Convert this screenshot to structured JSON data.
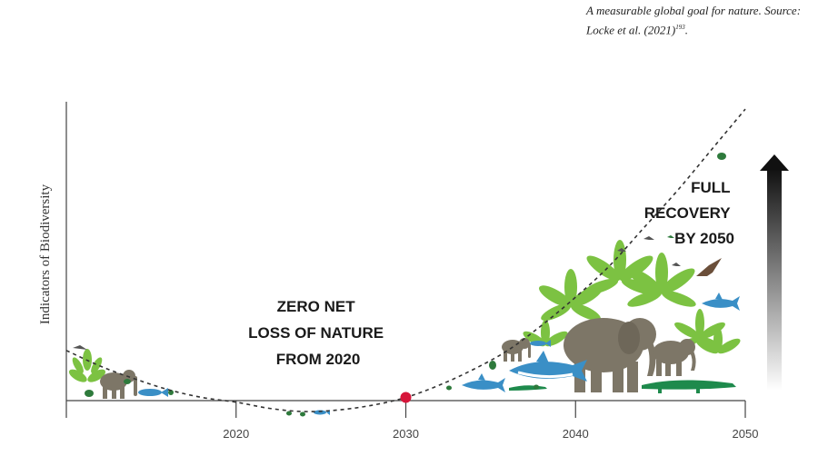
{
  "caption": {
    "text": "A measurable global goal for nature. Source: Locke et al. (2021)",
    "ref": "193",
    "suffix": "."
  },
  "chart_data": {
    "type": "line",
    "ylabel": "Indicators of Biodiversity",
    "xlabel": "",
    "xlim": [
      2010,
      2050
    ],
    "x_ticks": [
      2020,
      2030,
      2040,
      2050
    ],
    "y_ticks": [],
    "grid": false,
    "series": [
      {
        "style": "dashed",
        "color": "#333333",
        "x": [
          2010,
          2012,
          2014,
          2016,
          2018,
          2020,
          2022,
          2024,
          2026,
          2028,
          2030,
          2032,
          2034,
          2036,
          2038,
          2040,
          2042,
          2044,
          2046,
          2048,
          2050
        ],
        "y": [
          16,
          11,
          7,
          3.5,
          1,
          -0.5,
          -2.5,
          -3.5,
          -3,
          -1.5,
          1,
          5,
          10,
          16,
          24,
          33,
          43,
          55,
          67,
          80,
          93
        ]
      }
    ],
    "highlight_point": {
      "x": 2030,
      "y": 1,
      "color": "#d6163a"
    },
    "annotations": [
      {
        "lines": [
          "ZERO NET",
          "LOSS OF NATURE",
          "FROM 2020"
        ]
      },
      {
        "lines": [
          "FULL",
          "RECOVERY",
          "BY 2050"
        ]
      }
    ],
    "arrow": {
      "direction": "up",
      "gradient": [
        "#ffffff",
        "#111111"
      ]
    }
  },
  "illustration": {
    "icons": [
      "elephant-icon",
      "shark-icon",
      "crocodile-icon",
      "palm-leaf-icon",
      "bird-icon",
      "frog-icon",
      "fish-icon"
    ]
  }
}
